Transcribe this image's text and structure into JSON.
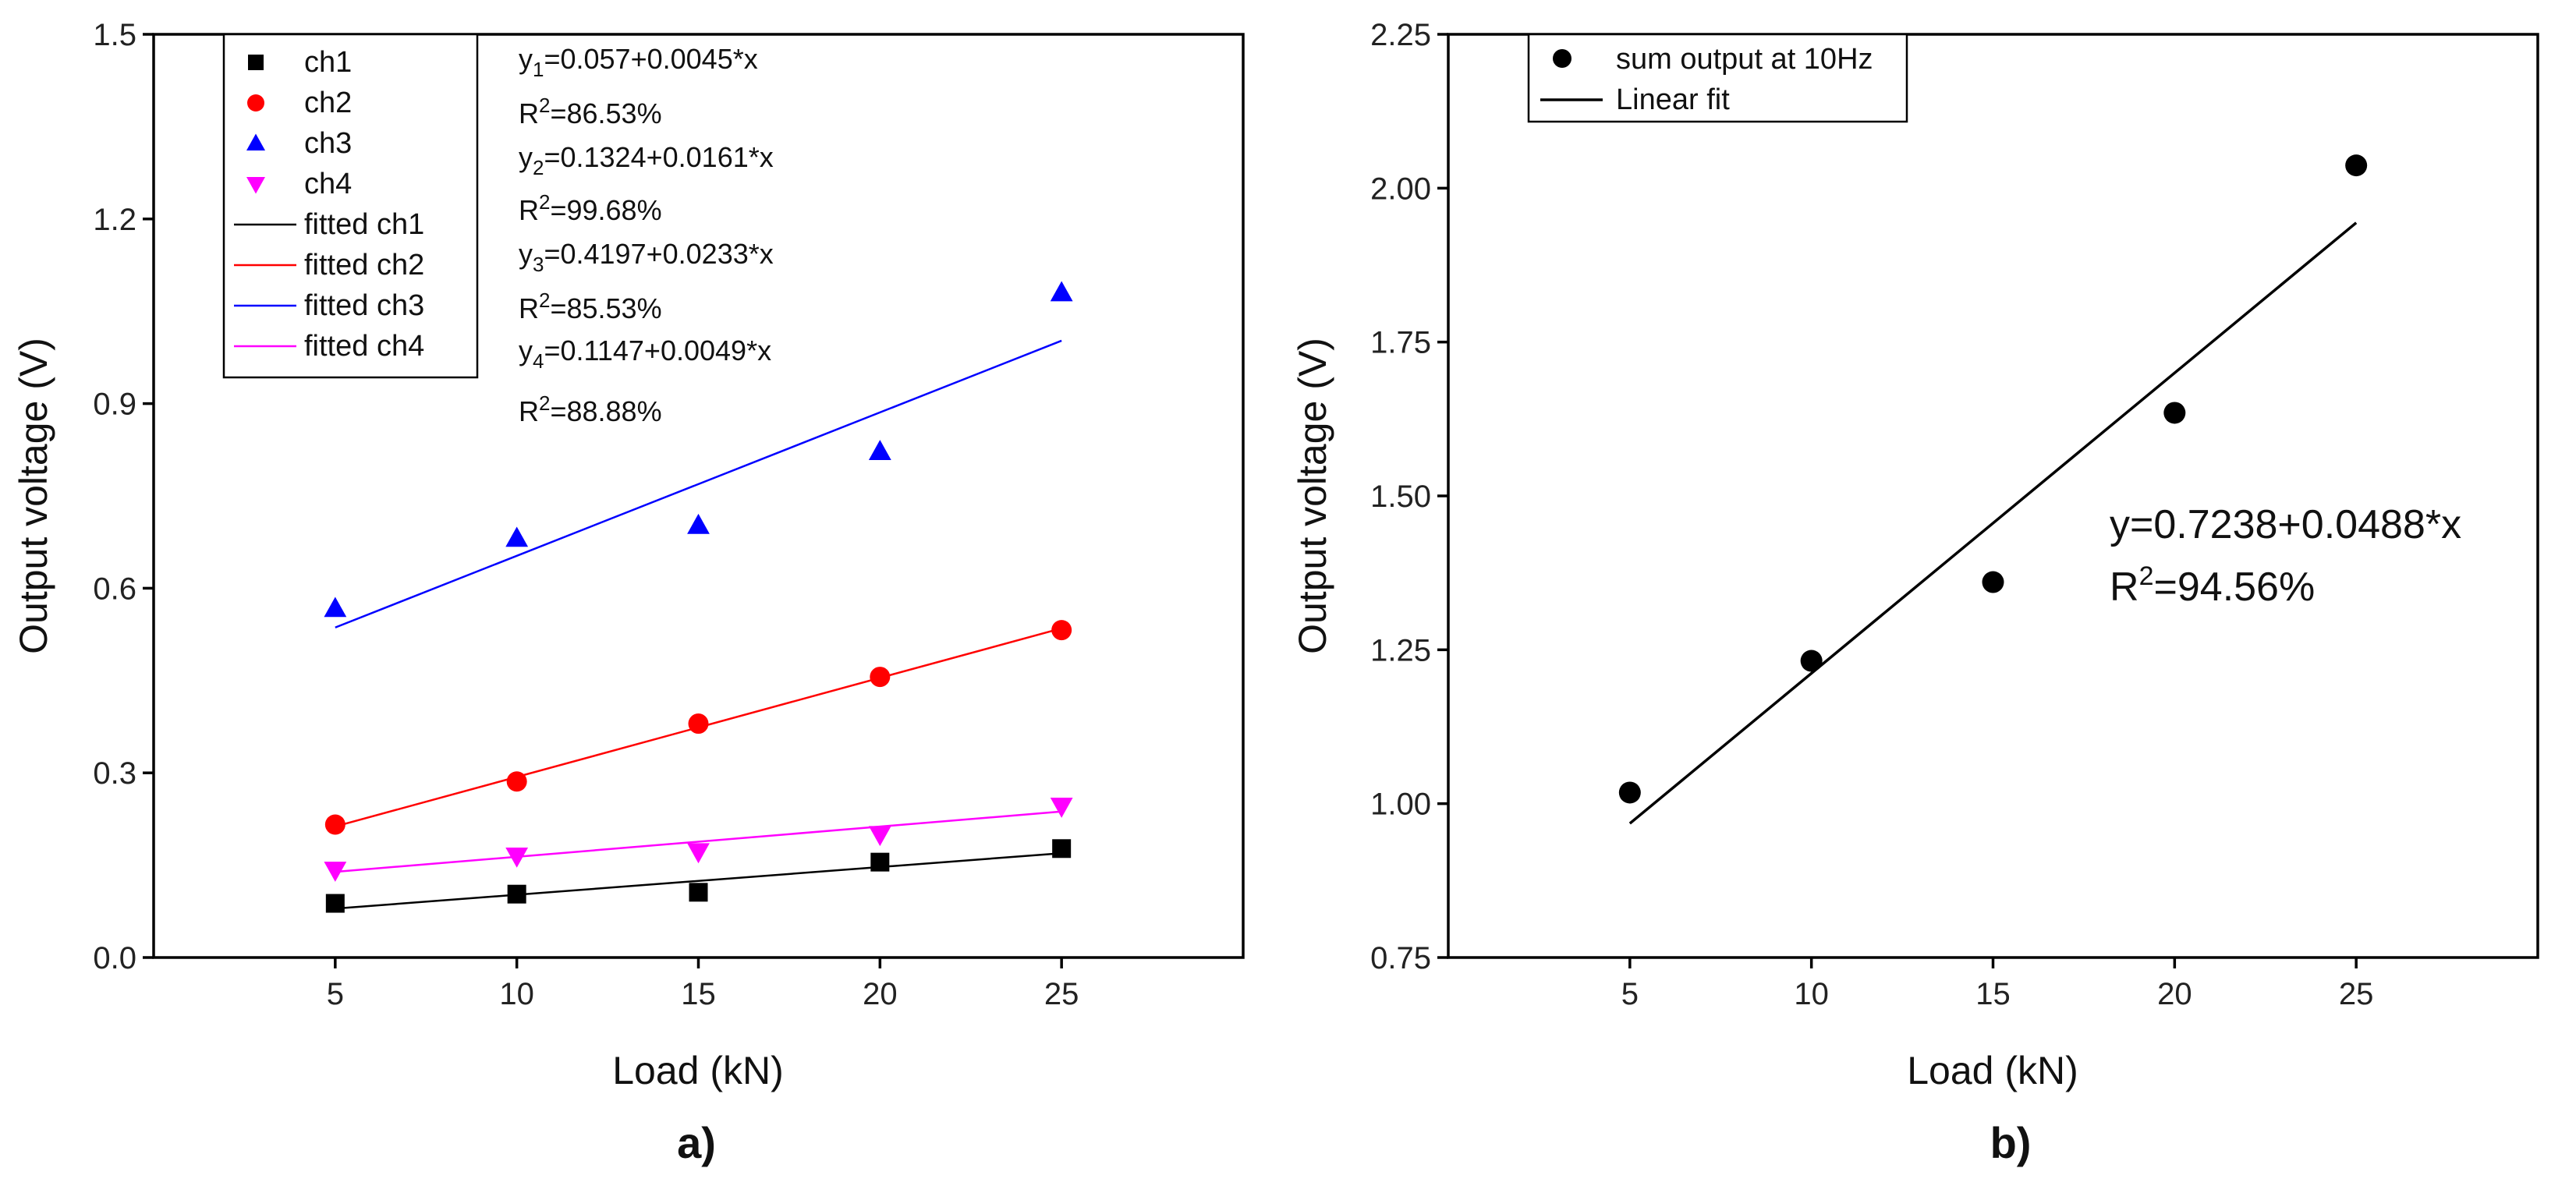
{
  "chart_data": [
    {
      "type": "scatter",
      "panel_label": "a)",
      "xlabel": "Load (kN)",
      "ylabel": "Output voltage (V)",
      "xlim": [
        0,
        30
      ],
      "ylim": [
        0,
        1.5
      ],
      "x_ticks": [
        5,
        10,
        15,
        20,
        25
      ],
      "x_tick_labels": [
        "5",
        "10",
        "15",
        "20",
        "25"
      ],
      "y_ticks": [
        0,
        0.3,
        0.6,
        0.9,
        1.2,
        1.5
      ],
      "y_tick_labels": [
        "0.0",
        "0.3",
        "0.6",
        "0.9",
        "1.2",
        "1.5"
      ],
      "x": [
        5,
        10,
        15,
        20,
        25
      ],
      "series": [
        {
          "name": "ch1",
          "marker": "square",
          "color": "#000000",
          "values": [
            0.088,
            0.103,
            0.106,
            0.155,
            0.177
          ]
        },
        {
          "name": "ch2",
          "marker": "circle",
          "color": "#ff0000",
          "values": [
            0.216,
            0.286,
            0.38,
            0.456,
            0.532
          ]
        },
        {
          "name": "ch3",
          "marker": "triangle-up",
          "color": "#0000ff",
          "values": [
            0.567,
            0.681,
            0.702,
            0.822,
            1.08
          ]
        },
        {
          "name": "ch4",
          "marker": "triangle-down",
          "color": "#ff00ff",
          "values": [
            0.142,
            0.165,
            0.172,
            0.2,
            0.246
          ]
        }
      ],
      "fits": [
        {
          "name": "fitted ch1",
          "color": "#000000",
          "intercept": 0.057,
          "slope": 0.0045,
          "x_range": [
            5,
            25
          ]
        },
        {
          "name": "fitted ch2",
          "color": "#ff0000",
          "intercept": 0.1324,
          "slope": 0.0161,
          "x_range": [
            5,
            25
          ]
        },
        {
          "name": "fitted ch3",
          "color": "#0000ff",
          "intercept": 0.4197,
          "slope": 0.0233,
          "x_range": [
            5,
            25
          ]
        },
        {
          "name": "fitted ch4",
          "color": "#ff00ff",
          "intercept": 0.1147,
          "slope": 0.0049,
          "x_range": [
            5,
            25
          ]
        }
      ],
      "legend_position": "top-left",
      "annotations": [
        {
          "y_name": "y",
          "sub": "1",
          "eq": "=0.057+0.0045*x",
          "r2": "=86.53%"
        },
        {
          "y_name": "y",
          "sub": "2",
          "eq": "=0.1324+0.0161*x",
          "r2": "=99.68%"
        },
        {
          "y_name": "y",
          "sub": "3",
          "eq": "=0.4197+0.0233*x",
          "r2": "=85.53%"
        },
        {
          "y_name": "y",
          "sub": "4",
          "eq": "=0.1147+0.0049*x",
          "r2": "=88.88%"
        }
      ],
      "r2_prefix": "R",
      "r2_sup": "2"
    },
    {
      "type": "scatter",
      "panel_label": "b)",
      "xlabel": "Load (kN)",
      "ylabel": "Output voltage (V)",
      "xlim": [
        0,
        30
      ],
      "ylim": [
        0.75,
        2.25
      ],
      "x_ticks": [
        5,
        10,
        15,
        20,
        25
      ],
      "x_tick_labels": [
        "5",
        "10",
        "15",
        "20",
        "25"
      ],
      "y_ticks": [
        0.75,
        1.0,
        1.25,
        1.5,
        1.75,
        2.0,
        2.25
      ],
      "y_tick_labels": [
        "0.75",
        "1.00",
        "1.25",
        "1.50",
        "1.75",
        "2.00",
        "2.25"
      ],
      "x": [
        5,
        10,
        15,
        20,
        25
      ],
      "series": [
        {
          "name": "sum output at 10Hz",
          "marker": "circle",
          "color": "#000000",
          "values": [
            1.018,
            1.232,
            1.36,
            1.635,
            2.037
          ]
        }
      ],
      "fits": [
        {
          "name": "Linear fit",
          "color": "#000000",
          "intercept": 0.7238,
          "slope": 0.0488,
          "x_range": [
            5,
            25
          ]
        }
      ],
      "legend_position": "top-left",
      "annotation": {
        "eq": "y=0.7238+0.0488*x",
        "r2_prefix": "R",
        "r2_sup": "2",
        "r2": "=94.56%"
      }
    }
  ]
}
